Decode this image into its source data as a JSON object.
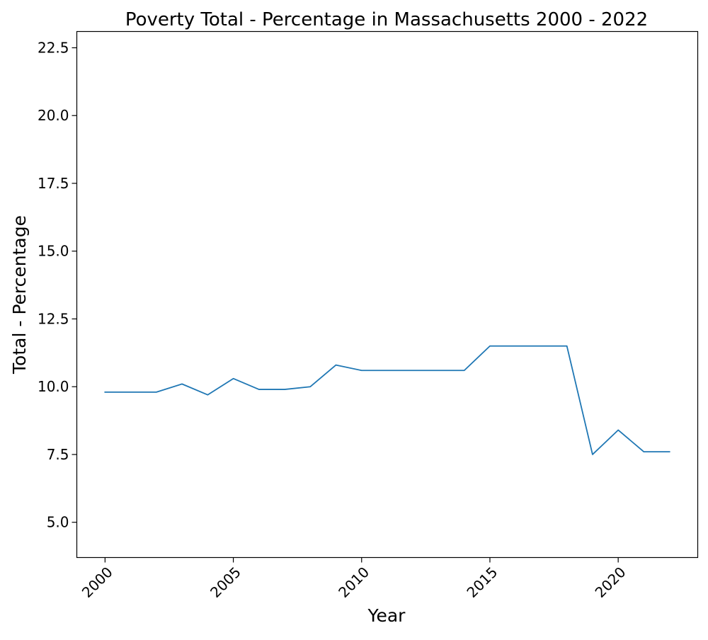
{
  "chart_data": {
    "type": "line",
    "title": "Poverty Total - Percentage in Massachusetts 2000 - 2022",
    "xlabel": "Year",
    "ylabel": "Total - Percentage",
    "xlim": [
      1998.9,
      2023.1
    ],
    "ylim": [
      3.7,
      23.1
    ],
    "x_ticks": [
      2000,
      2005,
      2010,
      2015,
      2020
    ],
    "y_ticks": [
      5.0,
      7.5,
      10.0,
      12.5,
      15.0,
      17.5,
      20.0,
      22.5
    ],
    "x_tick_rotation_deg": 45,
    "grid": false,
    "legend": "none",
    "series": [
      {
        "color": "#1f77b4",
        "x": [
          2000,
          2001,
          2002,
          2003,
          2004,
          2005,
          2006,
          2007,
          2008,
          2009,
          2010,
          2011,
          2012,
          2013,
          2014,
          2015,
          2016,
          2017,
          2018,
          2019,
          2020,
          2021,
          2022
        ],
        "y": [
          9.8,
          9.8,
          9.8,
          10.1,
          9.7,
          10.3,
          9.9,
          9.9,
          10.0,
          10.8,
          10.6,
          10.6,
          10.6,
          10.6,
          10.6,
          11.5,
          11.5,
          11.5,
          11.5,
          7.5,
          8.4,
          7.6,
          7.6
        ]
      }
    ]
  }
}
